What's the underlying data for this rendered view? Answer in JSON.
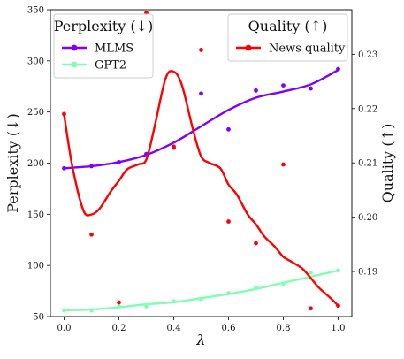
{
  "chart_data": {
    "type": "line",
    "xlabel": "λ",
    "ylabel_left": "Perplexity (↓)",
    "ylabel_right": "Quality (↑)",
    "x_ticks": [
      0.0,
      0.2,
      0.4,
      0.6,
      0.8,
      1.0
    ],
    "x_tick_labels": [
      "0.0",
      "0.2",
      "0.4",
      "0.6",
      "0.8",
      "1.0"
    ],
    "xlim": [
      -0.05,
      1.05
    ],
    "left_axis": {
      "ylim": [
        50,
        350
      ],
      "ticks": [
        50,
        100,
        150,
        200,
        250,
        300,
        350
      ],
      "tick_labels": [
        "50",
        "100",
        "150",
        "200",
        "250",
        "300",
        "350"
      ]
    },
    "right_axis": {
      "ylim": [
        0.1817,
        0.2382
      ],
      "ticks": [
        0.19,
        0.2,
        0.21,
        0.22,
        0.23
      ],
      "tick_labels": [
        "0.19",
        "0.20",
        "0.21",
        "0.22",
        "0.23"
      ]
    },
    "series": [
      {
        "name": "MLMS",
        "axis": "left",
        "color": "#7f00ff",
        "x": [
          0.0,
          0.1,
          0.2,
          0.3,
          0.4,
          0.5,
          0.6,
          0.7,
          0.8,
          0.9,
          1.0
        ],
        "points": [
          195,
          197,
          201,
          209,
          215,
          268,
          233,
          271,
          276,
          273,
          292
        ],
        "curve": [
          195,
          197,
          201,
          208,
          220,
          236,
          252,
          264,
          270,
          277,
          291
        ]
      },
      {
        "name": "GPT2",
        "axis": "left",
        "color": "#80ffb4",
        "x": [
          0.0,
          0.1,
          0.2,
          0.3,
          0.4,
          0.5,
          0.6,
          0.7,
          0.8,
          0.9,
          1.0
        ],
        "points": [
          56,
          56,
          60,
          60,
          65,
          67,
          73,
          78,
          82,
          93,
          95
        ],
        "curve": [
          56,
          57,
          59,
          62,
          64,
          68,
          72,
          77,
          83,
          89,
          95
        ]
      },
      {
        "name": "News quality",
        "axis": "right",
        "color": "#ff0000",
        "x": [
          0.0,
          0.1,
          0.2,
          0.3,
          0.4,
          0.5,
          0.6,
          0.7,
          0.8,
          0.9,
          1.0
        ],
        "points": [
          0.219,
          0.1968,
          0.1843,
          0.2376,
          0.213,
          0.2308,
          0.1992,
          0.1952,
          0.2097,
          0.1832,
          0.1837
        ],
        "curve_x": [
          0.0,
          0.03,
          0.07,
          0.1,
          0.13,
          0.17,
          0.2,
          0.23,
          0.27,
          0.3,
          0.33,
          0.37,
          0.4,
          0.43,
          0.47,
          0.5,
          0.53,
          0.57,
          0.6,
          0.63,
          0.67,
          0.7,
          0.73,
          0.77,
          0.8,
          0.83,
          0.87,
          0.9,
          0.93,
          0.97,
          1.0
        ],
        "curve": [
          0.2189,
          0.2094,
          0.2013,
          0.2005,
          0.2016,
          0.2047,
          0.2067,
          0.2088,
          0.2097,
          0.2106,
          0.2166,
          0.2255,
          0.2268,
          0.2243,
          0.2162,
          0.2112,
          0.21,
          0.209,
          0.206,
          0.2042,
          0.2005,
          0.1987,
          0.1965,
          0.1945,
          0.1927,
          0.1918,
          0.1905,
          0.1888,
          0.187,
          0.1852,
          0.1837
        ]
      }
    ],
    "legends": [
      {
        "title": "Perplexity (↓)",
        "placement": "top-left",
        "entries": [
          "MLMS",
          "GPT2"
        ]
      },
      {
        "title": "Quality (↑)",
        "placement": "top-right",
        "entries": [
          "News quality"
        ]
      }
    ],
    "grid": false
  }
}
